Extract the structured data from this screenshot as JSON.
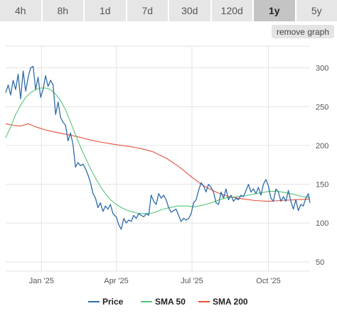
{
  "tabs": [
    {
      "label": "4h",
      "active": false
    },
    {
      "label": "8h",
      "active": false
    },
    {
      "label": "1d",
      "active": false
    },
    {
      "label": "7d",
      "active": false
    },
    {
      "label": "30d",
      "active": false
    },
    {
      "label": "120d",
      "active": false
    },
    {
      "label": "1y",
      "active": true
    },
    {
      "label": "5y",
      "active": false
    }
  ],
  "remove_graph_label": "remove graph",
  "chart_data": {
    "type": "line",
    "title": "",
    "xlabel": "",
    "ylabel": "",
    "ylim": [
      38,
      328
    ],
    "xlim": [
      "2024-11-19",
      "2025-11-20"
    ],
    "y_ticks": [
      50,
      100,
      150,
      200,
      250,
      300
    ],
    "x_ticks": [
      {
        "label": "Jan '25",
        "date": "2025-01-01"
      },
      {
        "label": "Apr '25",
        "date": "2025-04-01"
      },
      {
        "label": "Jul '25",
        "date": "2025-07-01"
      },
      {
        "label": "Oct '25",
        "date": "2025-10-01"
      }
    ],
    "grid": true,
    "legend_position": "bottom",
    "series": [
      {
        "name": "Price",
        "color": "#2f6ca8",
        "points": [
          [
            "2024-11-19",
            268
          ],
          [
            "2024-11-22",
            278
          ],
          [
            "2024-11-25",
            265
          ],
          [
            "2024-11-28",
            284
          ],
          [
            "2024-12-01",
            272
          ],
          [
            "2024-12-04",
            292
          ],
          [
            "2024-12-07",
            260
          ],
          [
            "2024-12-10",
            296
          ],
          [
            "2024-12-13",
            270
          ],
          [
            "2024-12-16",
            288
          ],
          [
            "2024-12-19",
            300
          ],
          [
            "2024-12-22",
            302
          ],
          [
            "2024-12-25",
            272
          ],
          [
            "2024-12-28",
            288
          ],
          [
            "2024-12-31",
            262
          ],
          [
            "2025-01-03",
            272
          ],
          [
            "2025-01-06",
            290
          ],
          [
            "2025-01-09",
            276
          ],
          [
            "2025-01-12",
            284
          ],
          [
            "2025-01-15",
            278
          ],
          [
            "2025-01-18",
            240
          ],
          [
            "2025-01-21",
            256
          ],
          [
            "2025-01-24",
            236
          ],
          [
            "2025-01-27",
            230
          ],
          [
            "2025-01-30",
            226
          ],
          [
            "2025-02-02",
            206
          ],
          [
            "2025-02-05",
            216
          ],
          [
            "2025-02-08",
            201
          ],
          [
            "2025-02-11",
            172
          ],
          [
            "2025-02-14",
            178
          ],
          [
            "2025-02-17",
            174
          ],
          [
            "2025-02-20",
            176
          ],
          [
            "2025-02-23",
            170
          ],
          [
            "2025-02-26",
            162
          ],
          [
            "2025-03-01",
            152
          ],
          [
            "2025-03-04",
            138
          ],
          [
            "2025-03-07",
            132
          ],
          [
            "2025-03-10",
            120
          ],
          [
            "2025-03-13",
            126
          ],
          [
            "2025-03-16",
            115
          ],
          [
            "2025-03-19",
            122
          ],
          [
            "2025-03-22",
            118
          ],
          [
            "2025-03-25",
            124
          ],
          [
            "2025-03-28",
            112
          ],
          [
            "2025-04-01",
            108
          ],
          [
            "2025-04-04",
            98
          ],
          [
            "2025-04-07",
            92
          ],
          [
            "2025-04-10",
            106
          ],
          [
            "2025-04-13",
            100
          ],
          [
            "2025-04-16",
            104
          ],
          [
            "2025-04-19",
            102
          ],
          [
            "2025-04-22",
            110
          ],
          [
            "2025-04-25",
            106
          ],
          [
            "2025-04-28",
            112
          ],
          [
            "2025-05-01",
            110
          ],
          [
            "2025-05-04",
            108
          ],
          [
            "2025-05-07",
            112
          ],
          [
            "2025-05-10",
            110
          ],
          [
            "2025-05-13",
            136
          ],
          [
            "2025-05-16",
            128
          ],
          [
            "2025-05-19",
            124
          ],
          [
            "2025-05-22",
            138
          ],
          [
            "2025-05-25",
            132
          ],
          [
            "2025-05-28",
            136
          ],
          [
            "2025-05-31",
            130
          ],
          [
            "2025-06-03",
            120
          ],
          [
            "2025-06-06",
            114
          ],
          [
            "2025-06-09",
            116
          ],
          [
            "2025-06-12",
            118
          ],
          [
            "2025-06-15",
            110
          ],
          [
            "2025-06-18",
            102
          ],
          [
            "2025-06-21",
            106
          ],
          [
            "2025-06-24",
            104
          ],
          [
            "2025-06-27",
            106
          ],
          [
            "2025-06-30",
            112
          ],
          [
            "2025-07-03",
            126
          ],
          [
            "2025-07-06",
            130
          ],
          [
            "2025-07-09",
            142
          ],
          [
            "2025-07-12",
            152
          ],
          [
            "2025-07-15",
            148
          ],
          [
            "2025-07-18",
            140
          ],
          [
            "2025-07-21",
            150
          ],
          [
            "2025-07-24",
            146
          ],
          [
            "2025-07-27",
            140
          ],
          [
            "2025-07-30",
            126
          ],
          [
            "2025-08-02",
            124
          ],
          [
            "2025-08-05",
            140
          ],
          [
            "2025-08-08",
            132
          ],
          [
            "2025-08-11",
            144
          ],
          [
            "2025-08-14",
            130
          ],
          [
            "2025-08-17",
            136
          ],
          [
            "2025-08-20",
            128
          ],
          [
            "2025-08-23",
            132
          ],
          [
            "2025-08-26",
            130
          ],
          [
            "2025-08-29",
            136
          ],
          [
            "2025-09-01",
            134
          ],
          [
            "2025-09-04",
            142
          ],
          [
            "2025-09-07",
            150
          ],
          [
            "2025-09-10",
            140
          ],
          [
            "2025-09-13",
            144
          ],
          [
            "2025-09-16",
            138
          ],
          [
            "2025-09-19",
            146
          ],
          [
            "2025-09-22",
            136
          ],
          [
            "2025-09-25",
            150
          ],
          [
            "2025-09-28",
            156
          ],
          [
            "2025-10-01",
            148
          ],
          [
            "2025-10-04",
            132
          ],
          [
            "2025-10-07",
            128
          ],
          [
            "2025-10-10",
            144
          ],
          [
            "2025-10-13",
            140
          ],
          [
            "2025-10-16",
            128
          ],
          [
            "2025-10-19",
            134
          ],
          [
            "2025-10-22",
            128
          ],
          [
            "2025-10-25",
            142
          ],
          [
            "2025-10-28",
            128
          ],
          [
            "2025-10-31",
            118
          ],
          [
            "2025-11-03",
            130
          ],
          [
            "2025-11-06",
            116
          ],
          [
            "2025-11-09",
            124
          ],
          [
            "2025-11-12",
            122
          ],
          [
            "2025-11-15",
            132
          ],
          [
            "2025-11-18",
            138
          ],
          [
            "2025-11-20",
            126
          ]
        ]
      },
      {
        "name": "SMA 50",
        "color": "#55c57a",
        "points": [
          [
            "2024-11-19",
            210
          ],
          [
            "2024-11-25",
            224
          ],
          [
            "2024-12-01",
            240
          ],
          [
            "2024-12-07",
            252
          ],
          [
            "2024-12-13",
            262
          ],
          [
            "2024-12-19",
            268
          ],
          [
            "2024-12-25",
            272
          ],
          [
            "2024-12-31",
            274
          ],
          [
            "2025-01-06",
            274
          ],
          [
            "2025-01-12",
            272
          ],
          [
            "2025-01-18",
            266
          ],
          [
            "2025-01-24",
            258
          ],
          [
            "2025-01-30",
            246
          ],
          [
            "2025-02-05",
            230
          ],
          [
            "2025-02-11",
            214
          ],
          [
            "2025-02-17",
            198
          ],
          [
            "2025-02-23",
            184
          ],
          [
            "2025-03-01",
            170
          ],
          [
            "2025-03-07",
            158
          ],
          [
            "2025-03-13",
            147
          ],
          [
            "2025-03-19",
            138
          ],
          [
            "2025-03-25",
            130
          ],
          [
            "2025-04-01",
            124
          ],
          [
            "2025-04-07",
            120
          ],
          [
            "2025-04-15",
            116
          ],
          [
            "2025-04-25",
            113
          ],
          [
            "2025-05-05",
            112
          ],
          [
            "2025-05-15",
            113
          ],
          [
            "2025-05-25",
            117
          ],
          [
            "2025-06-04",
            120
          ],
          [
            "2025-06-14",
            122
          ],
          [
            "2025-06-24",
            122
          ],
          [
            "2025-07-04",
            121
          ],
          [
            "2025-07-14",
            123
          ],
          [
            "2025-07-24",
            126
          ],
          [
            "2025-08-03",
            130
          ],
          [
            "2025-08-13",
            133
          ],
          [
            "2025-08-23",
            134
          ],
          [
            "2025-09-02",
            135
          ],
          [
            "2025-09-12",
            137
          ],
          [
            "2025-09-22",
            139
          ],
          [
            "2025-10-02",
            141
          ],
          [
            "2025-10-12",
            141
          ],
          [
            "2025-10-22",
            139
          ],
          [
            "2025-11-01",
            137
          ],
          [
            "2025-11-11",
            134
          ],
          [
            "2025-11-20",
            133
          ]
        ]
      },
      {
        "name": "SMA 200",
        "color": "#e8503a",
        "points": [
          [
            "2024-11-19",
            228
          ],
          [
            "2024-11-28",
            226
          ],
          [
            "2024-12-07",
            225
          ],
          [
            "2024-12-16",
            228
          ],
          [
            "2024-12-25",
            224
          ],
          [
            "2025-01-06",
            220
          ],
          [
            "2025-01-18",
            217
          ],
          [
            "2025-02-01",
            214
          ],
          [
            "2025-02-15",
            211
          ],
          [
            "2025-03-01",
            207
          ],
          [
            "2025-03-15",
            204
          ],
          [
            "2025-04-01",
            201
          ],
          [
            "2025-04-15",
            199
          ],
          [
            "2025-05-01",
            196
          ],
          [
            "2025-05-15",
            192
          ],
          [
            "2025-06-01",
            183
          ],
          [
            "2025-06-15",
            173
          ],
          [
            "2025-07-01",
            159
          ],
          [
            "2025-07-15",
            148
          ],
          [
            "2025-08-01",
            139
          ],
          [
            "2025-08-15",
            134
          ],
          [
            "2025-09-01",
            131
          ],
          [
            "2025-09-15",
            129
          ],
          [
            "2025-10-01",
            128
          ],
          [
            "2025-10-15",
            129
          ],
          [
            "2025-11-01",
            130
          ],
          [
            "2025-11-20",
            131
          ]
        ]
      }
    ]
  }
}
